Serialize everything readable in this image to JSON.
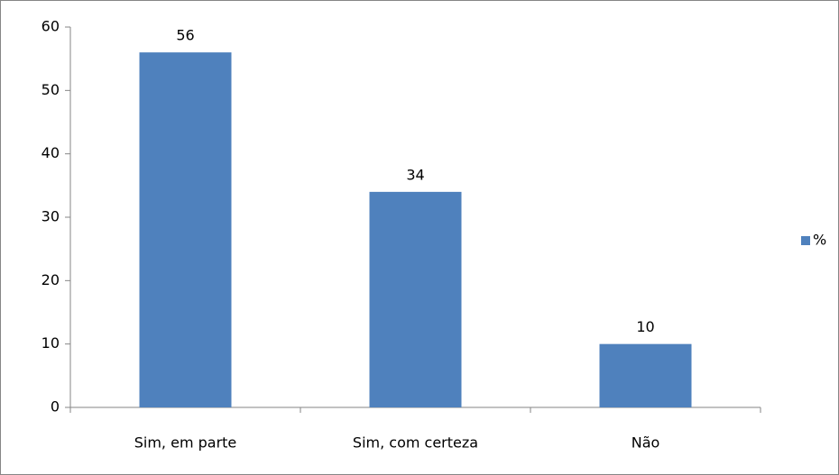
{
  "chart_data": {
    "type": "bar",
    "categories": [
      "Sim, em parte",
      "Sim, com certeza",
      "Não"
    ],
    "series": [
      {
        "name": "%",
        "color": "#4f81bd",
        "values": [
          56,
          34,
          10
        ]
      }
    ],
    "ylim": [
      0,
      60
    ],
    "yticks": [
      0,
      10,
      20,
      30,
      40,
      50,
      60
    ],
    "grid": false,
    "legend": "right",
    "data_labels": true
  }
}
